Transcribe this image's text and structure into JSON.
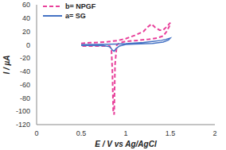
{
  "chart_data": {
    "type": "line",
    "x_label": "E / V vs Ag/AgCl",
    "y_label": "I / µA",
    "xlim": [
      0,
      2
    ],
    "xticks": [
      0,
      0.5,
      1,
      1.5,
      2
    ],
    "ylim": [
      -120,
      60
    ],
    "yticks": [
      -120,
      -100,
      -80,
      -60,
      -40,
      -20,
      0,
      20,
      40,
      60
    ],
    "grid": false,
    "legend": "upper left",
    "series": [
      {
        "name": "b= NPGF",
        "color": "#e8409a",
        "line_style": "dashed",
        "x": [
          0.5,
          0.6,
          0.7,
          0.8,
          0.9,
          1.0,
          1.1,
          1.15,
          1.2,
          1.25,
          1.29,
          1.33,
          1.38,
          1.42,
          1.46,
          1.5,
          1.49,
          1.46,
          1.42,
          1.35,
          1.25,
          1.1,
          1.0,
          0.94,
          0.9,
          0.88,
          0.87,
          0.86,
          0.85,
          0.84,
          0.82,
          0.75,
          0.65,
          0.5
        ],
        "values": [
          2,
          3,
          3.5,
          4.5,
          6,
          9,
          14,
          17,
          20,
          27,
          31,
          26,
          22,
          22,
          27,
          33,
          28,
          20,
          13,
          10,
          8,
          6,
          5,
          3,
          0,
          -30,
          -105,
          -100,
          -40,
          -8,
          -2,
          -2,
          -2,
          -2
        ]
      },
      {
        "name": "a= SG",
        "color": "#4472c4",
        "line_style": "solid",
        "x": [
          0.5,
          0.7,
          0.9,
          1.0,
          1.1,
          1.2,
          1.3,
          1.4,
          1.45,
          1.5,
          1.48,
          1.42,
          1.3,
          1.1,
          1.0,
          0.93,
          0.89,
          0.87,
          0.85,
          0.82,
          0.75,
          0.6,
          0.5
        ],
        "values": [
          0,
          0.5,
          1,
          1.5,
          2.5,
          3.5,
          5,
          6.5,
          8,
          10,
          7,
          4,
          2,
          1,
          0.5,
          -2,
          -6,
          -10,
          -8,
          -3,
          -1.5,
          -1,
          -1
        ]
      }
    ]
  }
}
